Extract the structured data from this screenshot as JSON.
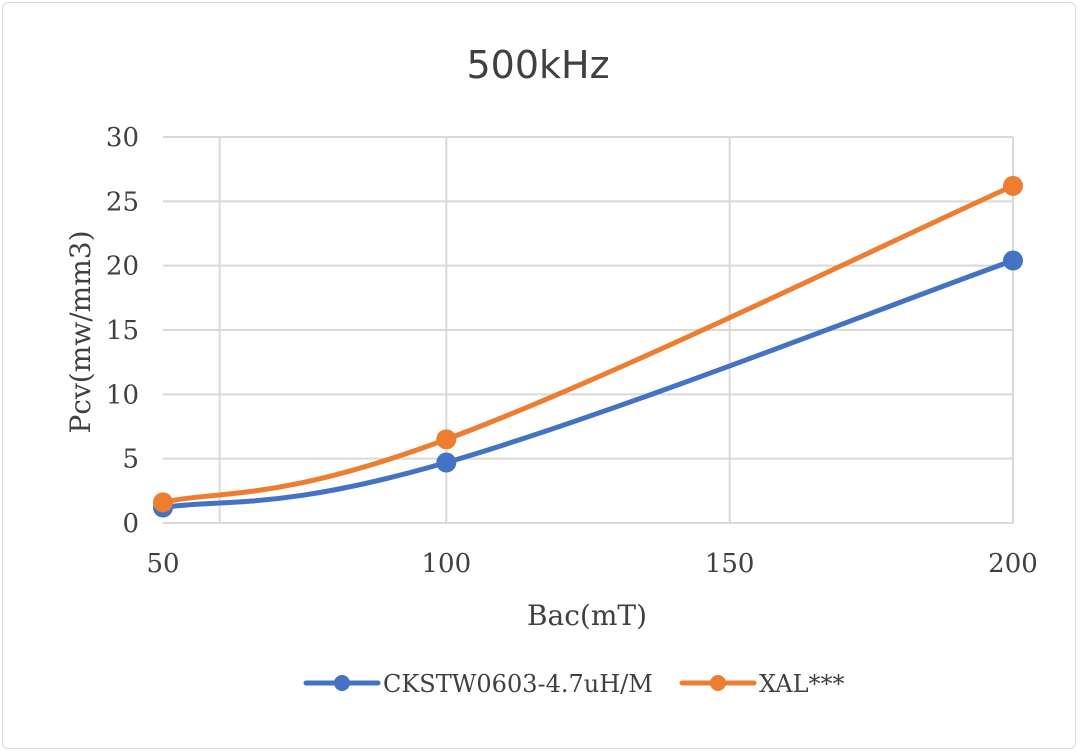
{
  "chart_data": {
    "type": "line",
    "title": "500kHz",
    "xlabel": "Bac(mT)",
    "ylabel": "Pcv(mw/mm3)",
    "xlim": [
      50,
      200
    ],
    "ylim": [
      0,
      30
    ],
    "x_ticks": [
      "50",
      "100",
      "150",
      "200"
    ],
    "y_ticks": [
      "0",
      "5",
      "10",
      "15",
      "20",
      "25",
      "30"
    ],
    "grid": true,
    "legend_position": "bottom",
    "series": [
      {
        "name": "CKSTW0603-4.7uH/M",
        "color": "#4472C4",
        "x": [
          50,
          100,
          200
        ],
        "values": [
          1.2,
          4.7,
          20.4
        ]
      },
      {
        "name": "XAL***",
        "color": "#ED7D31",
        "x": [
          50,
          100,
          200
        ],
        "values": [
          1.6,
          6.5,
          26.2
        ]
      }
    ]
  }
}
